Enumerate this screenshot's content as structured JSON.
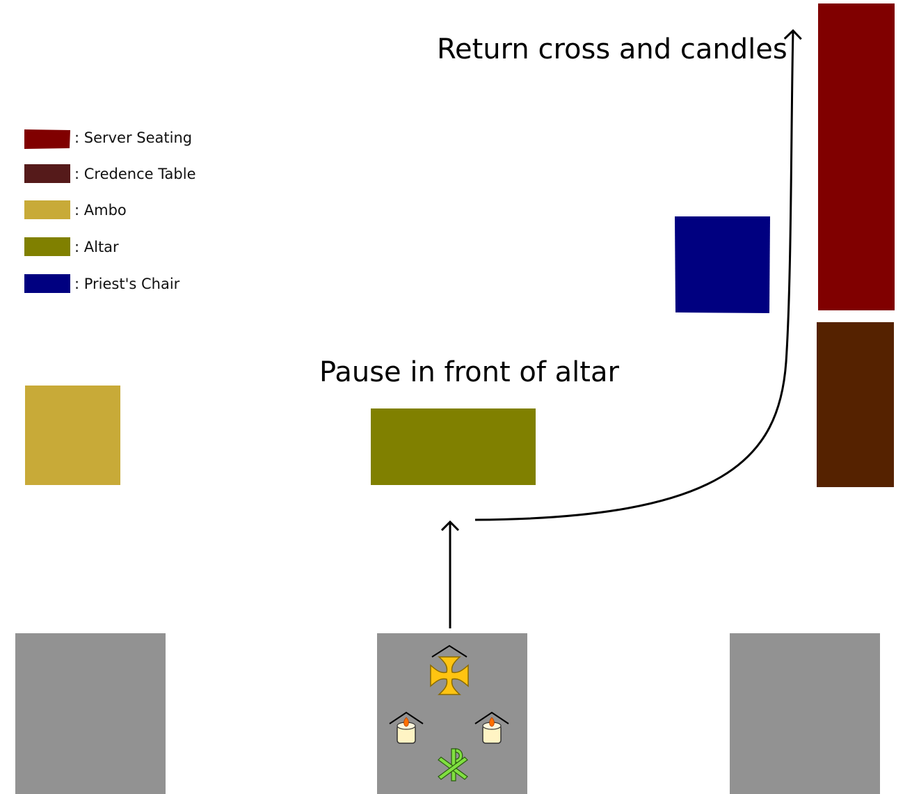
{
  "diagram": {
    "legend": {
      "server_seating": ": Server Seating",
      "credence_table": ": Credence Table",
      "ambo": ": Ambo",
      "altar": ": Altar",
      "priests_chair": ": Priest's Chair"
    },
    "labels": {
      "return": "Return cross and candles",
      "pause": "Pause in front of altar"
    },
    "colors": {
      "server_seating": "#800000",
      "credence_table": "#551a1a",
      "credence_table_item": "#552200",
      "ambo": "#c8aa38",
      "altar": "#808000",
      "priests_chair": "#000080",
      "pew": "#929292",
      "cross": "#ffc411",
      "chi_rho": "#80e040",
      "candle": "#fff4c4",
      "flame": "#ff7000"
    },
    "icons": {
      "processional_cross": "processional-cross-icon",
      "candle_left": "candle-icon",
      "candle_right": "candle-icon",
      "chi_rho": "chi-rho-icon"
    }
  }
}
